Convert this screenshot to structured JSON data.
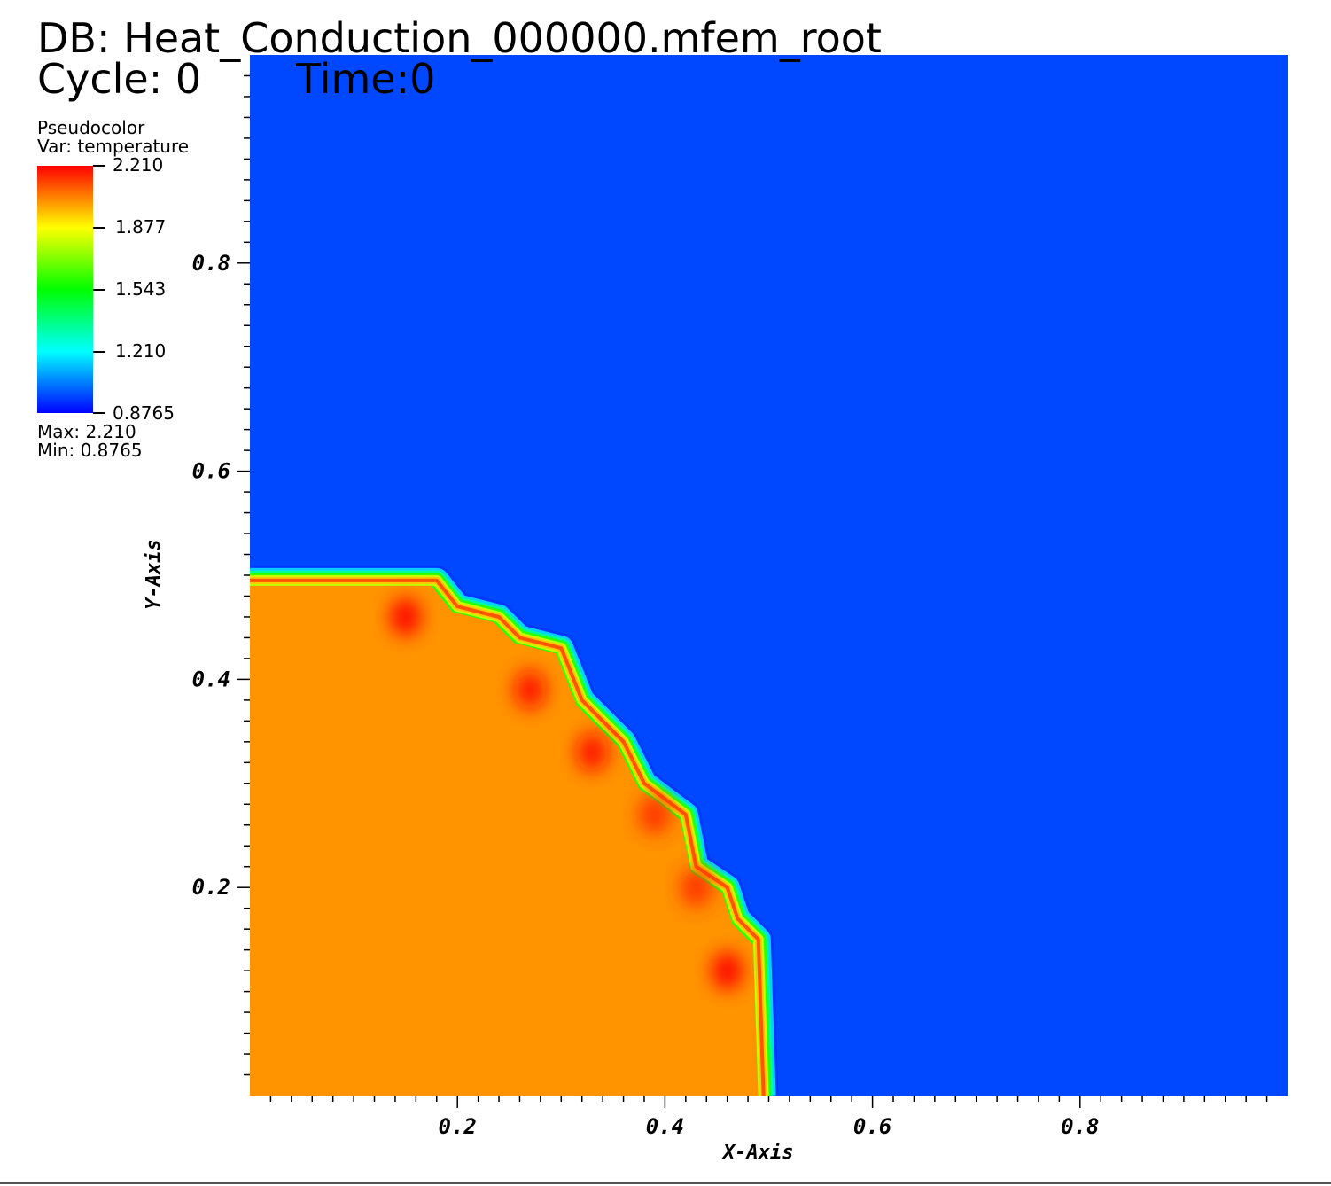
{
  "header": {
    "db_label": "DB: Heat_Conduction_000000.mfem_root",
    "cycle_label": "Cycle: 0",
    "time_label": "Time:0"
  },
  "legend": {
    "plot_type": "Pseudocolor",
    "var_label": "Var: temperature",
    "ticks": [
      "2.210",
      "1.877",
      "1.543",
      "1.210",
      "0.8765"
    ],
    "max_label": "Max:  2.210",
    "min_label": "Min:  0.8765"
  },
  "chart_data": {
    "type": "heatmap",
    "variable": "temperature",
    "xlabel": "X-Axis",
    "ylabel": "Y-Axis",
    "xlim": [
      0,
      1
    ],
    "ylim": [
      0,
      1
    ],
    "x_ticks": [
      "0.2",
      "0.4",
      "0.6",
      "0.8"
    ],
    "y_ticks": [
      "0.2",
      "0.4",
      "0.6",
      "0.8"
    ],
    "x_tick_values": [
      0.2,
      0.4,
      0.6,
      0.8
    ],
    "y_tick_values": [
      0.2,
      0.4,
      0.6,
      0.8
    ],
    "color_range": [
      0.8765,
      2.21
    ],
    "colormap": [
      "#ff0000",
      "#ffff00",
      "#00ff00",
      "#00ffff",
      "#0000ff"
    ],
    "background_value": 0.8765,
    "inner_value": 1.98,
    "background_color": "#0048ff",
    "inner_color": "#ff9300",
    "hot_region_boundary": [
      [
        0.0,
        0.495
      ],
      [
        0.18,
        0.495
      ],
      [
        0.2,
        0.47
      ],
      [
        0.24,
        0.46
      ],
      [
        0.26,
        0.44
      ],
      [
        0.3,
        0.43
      ],
      [
        0.32,
        0.38
      ],
      [
        0.36,
        0.34
      ],
      [
        0.38,
        0.3
      ],
      [
        0.42,
        0.27
      ],
      [
        0.43,
        0.22
      ],
      [
        0.46,
        0.2
      ],
      [
        0.47,
        0.17
      ],
      [
        0.49,
        0.15
      ],
      [
        0.495,
        0.0
      ]
    ],
    "hot_spots": [
      {
        "x": 0.15,
        "y": 0.46,
        "value": 2.21
      },
      {
        "x": 0.27,
        "y": 0.39,
        "value": 2.2
      },
      {
        "x": 0.33,
        "y": 0.33,
        "value": 2.2
      },
      {
        "x": 0.39,
        "y": 0.27,
        "value": 2.15
      },
      {
        "x": 0.43,
        "y": 0.2,
        "value": 2.15
      },
      {
        "x": 0.46,
        "y": 0.12,
        "value": 2.21
      }
    ]
  }
}
